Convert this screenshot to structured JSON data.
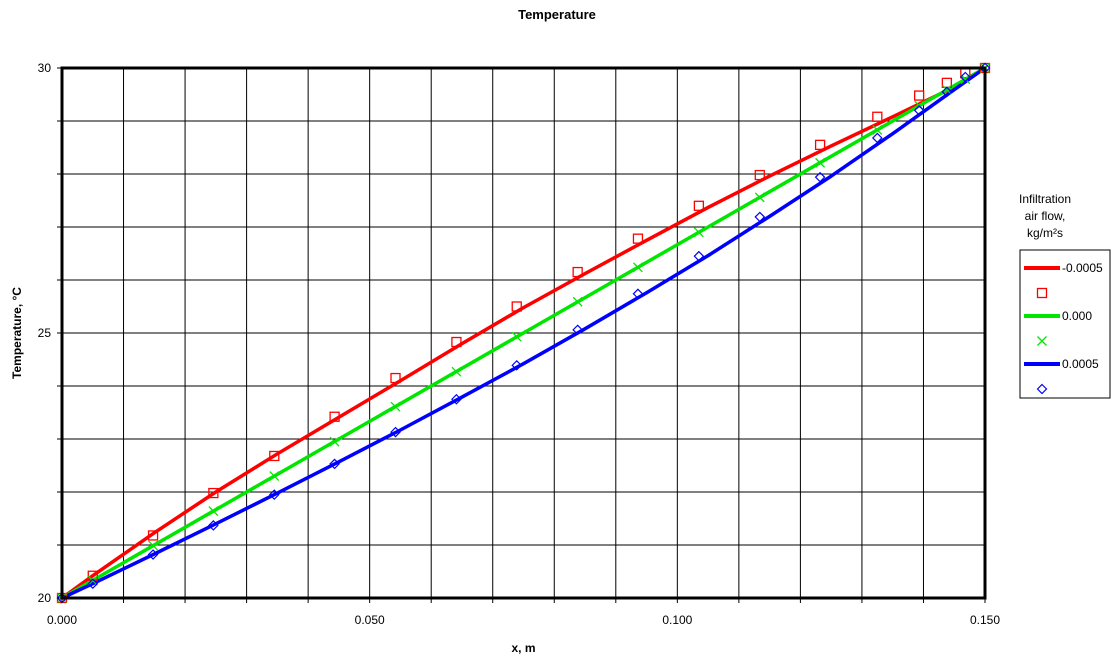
{
  "chart_data": {
    "type": "line",
    "title": "Temperature",
    "xlabel": "x, m",
    "ylabel": "Temperature, °C",
    "xlim": [
      0,
      0.15
    ],
    "ylim": [
      20,
      30
    ],
    "x_ticks": [
      "0.000",
      "0.050",
      "0.100",
      "0.150"
    ],
    "y_ticks": [
      "20",
      "25",
      "30"
    ],
    "grid": true,
    "legend_title": [
      "Infiltration",
      "air flow,",
      "kg/m²s"
    ],
    "legend_placement": "right",
    "colors": {
      "red": "#ff0000",
      "green": "#00e600",
      "blue": "#0000ff"
    },
    "series": [
      {
        "name": "-0.0005",
        "color": "#ff0000",
        "marker": "square",
        "line_x": [
          0,
          0.005,
          0.015,
          0.025,
          0.035,
          0.045,
          0.055,
          0.065,
          0.075,
          0.085,
          0.095,
          0.105,
          0.115,
          0.125,
          0.135,
          0.145,
          0.15
        ],
        "line_y": [
          20.0,
          20.42,
          21.23,
          22.0,
          22.72,
          23.41,
          24.1,
          24.8,
          25.48,
          26.12,
          26.75,
          27.37,
          27.96,
          28.53,
          29.08,
          29.64,
          30.0
        ],
        "marker_x": [
          0,
          0.005,
          0.0148,
          0.0246,
          0.0345,
          0.0443,
          0.0542,
          0.0641,
          0.0739,
          0.0838,
          0.0936,
          0.1035,
          0.1134,
          0.1232,
          0.1325,
          0.1393,
          0.1438,
          0.1468,
          0.15
        ],
        "marker_y": [
          20.0,
          20.42,
          21.18,
          21.98,
          22.68,
          23.42,
          24.15,
          24.83,
          25.5,
          26.15,
          26.78,
          27.4,
          27.98,
          28.55,
          29.08,
          29.48,
          29.72,
          29.9,
          30.0
        ]
      },
      {
        "name": "0.000",
        "color": "#00e600",
        "marker": "x",
        "line_x": [
          0,
          0.15
        ],
        "line_y": [
          20.0,
          30.0
        ],
        "marker_x": [
          0,
          0.005,
          0.0148,
          0.0246,
          0.0345,
          0.0443,
          0.0542,
          0.0641,
          0.0739,
          0.0838,
          0.0936,
          0.1035,
          0.1134,
          0.1232,
          0.1325,
          0.1393,
          0.1438,
          0.1468,
          0.15
        ],
        "marker_y": [
          20.0,
          20.33,
          20.99,
          21.64,
          22.3,
          22.95,
          23.61,
          24.27,
          24.93,
          25.59,
          26.24,
          26.9,
          27.56,
          28.21,
          28.83,
          29.29,
          29.59,
          29.79,
          30.0
        ]
      },
      {
        "name": "0.0005",
        "color": "#0000ff",
        "marker": "diamond",
        "line_x": [
          0,
          0.005,
          0.015,
          0.025,
          0.035,
          0.045,
          0.055,
          0.065,
          0.075,
          0.085,
          0.095,
          0.105,
          0.115,
          0.125,
          0.135,
          0.145,
          0.15
        ],
        "line_y": [
          20.0,
          20.27,
          20.83,
          21.4,
          21.98,
          22.57,
          23.17,
          23.79,
          24.42,
          25.08,
          25.76,
          26.46,
          27.2,
          27.96,
          28.76,
          29.59,
          30.0
        ],
        "marker_x": [
          0,
          0.005,
          0.0148,
          0.0246,
          0.0345,
          0.0443,
          0.0542,
          0.0641,
          0.0739,
          0.0838,
          0.0936,
          0.1035,
          0.1134,
          0.1232,
          0.1325,
          0.1393,
          0.1438,
          0.1468,
          0.15
        ],
        "marker_y": [
          20.0,
          20.27,
          20.82,
          21.37,
          21.95,
          22.53,
          23.13,
          23.75,
          24.39,
          25.06,
          25.74,
          26.45,
          27.19,
          27.94,
          28.68,
          29.2,
          29.55,
          29.83,
          30.0
        ]
      }
    ]
  }
}
